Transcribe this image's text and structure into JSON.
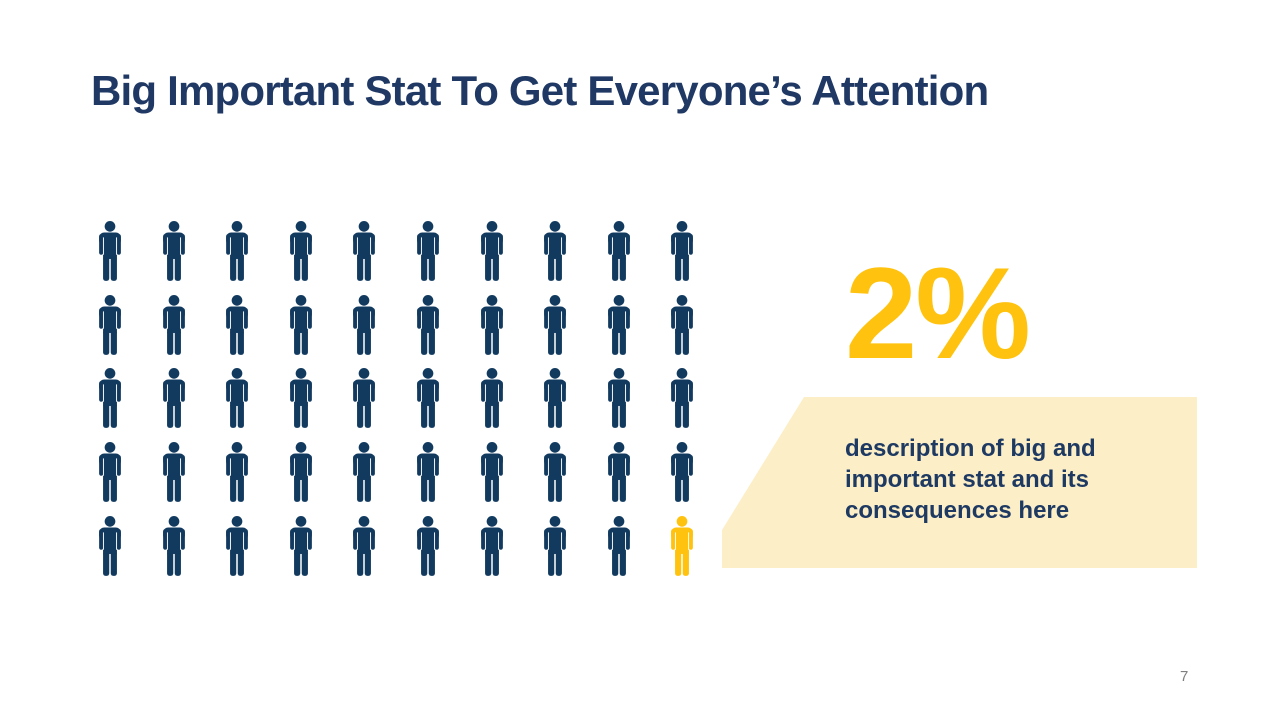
{
  "slide": {
    "title": "Big Important Stat To Get Everyone’s Attention",
    "page_number": "7",
    "stat": {
      "value": "2%",
      "description_lines": [
        "description of big and",
        "important stat and its",
        "consequences here"
      ],
      "description": "description of big and important stat and its consequences here"
    },
    "pictogram": {
      "rows": 5,
      "columns": 10,
      "total": 50,
      "highlighted_count": 1,
      "highlighted_index": 49,
      "icon_name": "person-icon",
      "normal_color": "#123a5f",
      "highlight_color": "#ffc20e"
    },
    "colors": {
      "title": "#1f3864",
      "accent_gold": "#ffc20e",
      "callout_bg": "#fceec6",
      "text_navy": "#1e3a63",
      "page_number": "#7f7f7f",
      "background": "#ffffff"
    }
  },
  "chart_data": {
    "type": "pictogram",
    "title": "Big Important Stat To Get Everyone’s Attention",
    "stat_label": "2%",
    "rows": 5,
    "columns": 10,
    "categories": [
      "highlighted",
      "remaining"
    ],
    "values": [
      1,
      49
    ],
    "total_icons": 50,
    "percent_highlighted": 2,
    "annotation": "description of big and important stat and its consequences here",
    "legend_position": "none",
    "grid": false
  }
}
